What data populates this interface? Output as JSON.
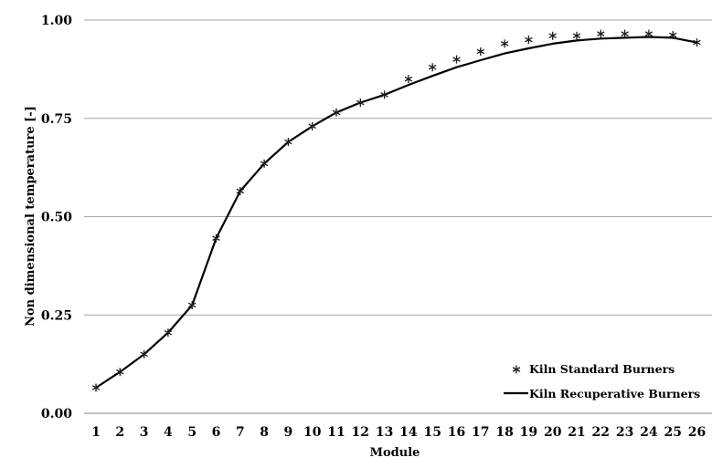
{
  "chart_data": {
    "type": "line",
    "title": "",
    "xlabel": "Module",
    "ylabel": "Non dimensional temperature [-]",
    "ylim": [
      0,
      1
    ],
    "y_ticks": [
      "0.00",
      "0.25",
      "0.50",
      "0.75",
      "1.00"
    ],
    "grid": "horizontal",
    "legend_position": "bottom-right",
    "categories": [
      "1",
      "2",
      "3",
      "4",
      "5",
      "6",
      "7",
      "8",
      "9",
      "10",
      "11",
      "12",
      "13",
      "14",
      "15",
      "16",
      "17",
      "18",
      "19",
      "20",
      "21",
      "22",
      "23",
      "24",
      "25",
      "26"
    ],
    "series": [
      {
        "name": "Kiln Standard Burners",
        "style": "markers",
        "marker": "asterisk",
        "color": "#1a1a1a",
        "values": [
          0.065,
          0.105,
          0.15,
          0.205,
          0.275,
          0.445,
          0.565,
          0.635,
          0.69,
          0.73,
          0.765,
          0.79,
          0.81,
          0.85,
          0.88,
          0.9,
          0.92,
          0.94,
          0.95,
          0.96,
          0.96,
          0.965,
          0.965,
          0.965,
          0.962,
          0.943
        ]
      },
      {
        "name": "Kiln Recuperative Burners",
        "style": "line",
        "color": "#000000",
        "values": [
          0.065,
          0.105,
          0.15,
          0.205,
          0.275,
          0.445,
          0.565,
          0.635,
          0.69,
          0.73,
          0.765,
          0.79,
          0.81,
          0.835,
          0.858,
          0.88,
          0.898,
          0.915,
          0.928,
          0.94,
          0.948,
          0.953,
          0.955,
          0.957,
          0.955,
          0.943
        ]
      }
    ]
  }
}
